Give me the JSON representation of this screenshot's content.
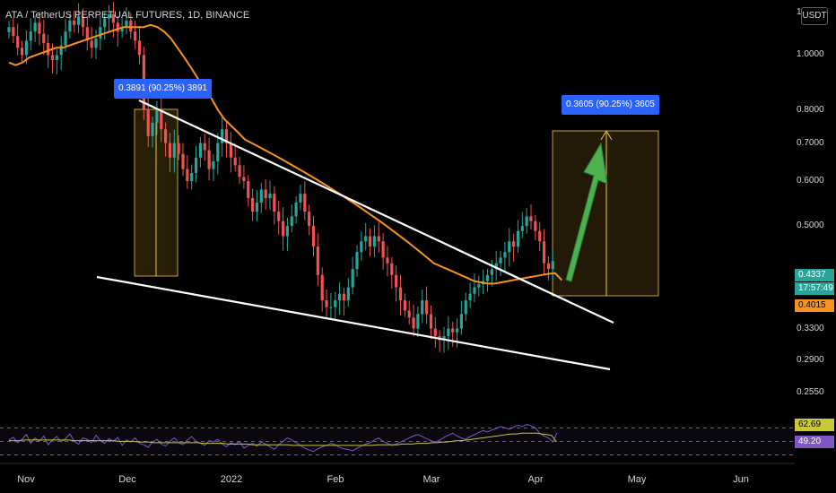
{
  "header": {
    "symbol_title": "ATA / TetherUS PERPETUAL FUTURES, 1D, BINANCE",
    "currency_button": "USDT",
    "top_price_fragment": "1"
  },
  "chart_data": {
    "type": "candlestick",
    "y_scale": "log",
    "ylim": [
      0.235,
      1.25
    ],
    "x_ticks": [
      "Nov",
      "Dec",
      "2022",
      "Feb",
      "Mar",
      "Apr",
      "May",
      "Jun"
    ],
    "y_ticks": [
      "1.0000",
      "0.8000",
      "0.7000",
      "0.6000",
      "0.5000",
      "0.3300",
      "0.2900",
      "0.2550"
    ],
    "last_price": "0.4337",
    "countdown": "17:57:49",
    "ma_price": "0.4015",
    "colors": {
      "up": "#26a69a",
      "down": "#ef5350",
      "ma": "#f7931a",
      "rsi": "#7e57c2",
      "rsi_ma": "#c8c83a",
      "arrow": "#4caf50",
      "callout": "#2962ff"
    },
    "candles_close": [
      1.12,
      1.08,
      1.03,
      1.0,
      1.06,
      1.1,
      1.14,
      1.09,
      1.05,
      1.0,
      0.98,
      1.0,
      1.04,
      1.1,
      1.15,
      1.13,
      1.17,
      1.12,
      1.06,
      1.03,
      1.07,
      1.12,
      1.16,
      1.18,
      1.14,
      1.1,
      1.12,
      1.15,
      1.1,
      1.06,
      1.0,
      0.8,
      0.72,
      0.76,
      0.8,
      0.74,
      0.7,
      0.66,
      0.7,
      0.67,
      0.63,
      0.6,
      0.62,
      0.66,
      0.7,
      0.68,
      0.63,
      0.65,
      0.7,
      0.74,
      0.7,
      0.66,
      0.64,
      0.61,
      0.6,
      0.56,
      0.53,
      0.55,
      0.58,
      0.56,
      0.57,
      0.53,
      0.51,
      0.48,
      0.5,
      0.52,
      0.55,
      0.57,
      0.53,
      0.5,
      0.46,
      0.41,
      0.37,
      0.36,
      0.36,
      0.37,
      0.38,
      0.37,
      0.39,
      0.42,
      0.45,
      0.47,
      0.48,
      0.46,
      0.48,
      0.47,
      0.44,
      0.43,
      0.41,
      0.39,
      0.37,
      0.355,
      0.345,
      0.33,
      0.35,
      0.37,
      0.35,
      0.33,
      0.32,
      0.315,
      0.32,
      0.33,
      0.325,
      0.33,
      0.35,
      0.37,
      0.38,
      0.39,
      0.395,
      0.4,
      0.41,
      0.42,
      0.43,
      0.44,
      0.45,
      0.47,
      0.46,
      0.49,
      0.5,
      0.52,
      0.51,
      0.49,
      0.47,
      0.43,
      0.42,
      0.4337
    ],
    "ma_line": [
      0.97,
      0.96,
      0.97,
      0.99,
      1.0,
      1.01,
      1.02,
      1.03,
      1.03,
      1.04,
      1.05,
      1.06,
      1.07,
      1.08,
      1.09,
      1.1,
      1.11,
      1.12,
      1.12,
      1.12,
      1.12,
      1.13,
      1.12,
      1.1,
      1.07,
      1.03,
      0.99,
      0.95,
      0.91,
      0.87,
      0.84,
      0.8,
      0.77,
      0.75,
      0.73,
      0.71,
      0.7,
      0.69,
      0.68,
      0.67,
      0.66,
      0.65,
      0.64,
      0.63,
      0.62,
      0.61,
      0.6,
      0.59,
      0.58,
      0.57,
      0.56,
      0.55,
      0.54,
      0.53,
      0.52,
      0.51,
      0.5,
      0.49,
      0.48,
      0.47,
      0.46,
      0.45,
      0.44,
      0.43,
      0.425,
      0.42,
      0.415,
      0.41,
      0.405,
      0.4,
      0.398,
      0.396,
      0.396,
      0.398,
      0.4,
      0.402,
      0.404,
      0.406,
      0.408,
      0.41,
      0.412,
      0.413,
      0.4015
    ],
    "ma_line_start_index": 0,
    "ma_line_step": 1.55,
    "annotations": {
      "left_label": "0.3891 (90.25%) 3891",
      "right_label": "0.3605 (90.25%) 3605"
    },
    "rsi": {
      "value": "62.69",
      "ma_value": "49.20",
      "overbought_label": "",
      "values": [
        52,
        56,
        48,
        53,
        60,
        47,
        55,
        50,
        58,
        45,
        52,
        57,
        49,
        54,
        61,
        50,
        46,
        55,
        53,
        48,
        59,
        51,
        47,
        54,
        50,
        56,
        44,
        52,
        49,
        55,
        47,
        45,
        41,
        49,
        53,
        46,
        43,
        50,
        55,
        48,
        45,
        52,
        57,
        50,
        47,
        44,
        51,
        49,
        53,
        46,
        42,
        48,
        45,
        50,
        40,
        44,
        47,
        43,
        49,
        46,
        42,
        38,
        45,
        50,
        55,
        52,
        48,
        44,
        40,
        37,
        35,
        39,
        42,
        44,
        47,
        45,
        41,
        39,
        38,
        36,
        40,
        43,
        46,
        48,
        52,
        55,
        50,
        47,
        44,
        46,
        49,
        52,
        55,
        58,
        60,
        57,
        54,
        51,
        49,
        52,
        56,
        59,
        62,
        58,
        55,
        53,
        57,
        60,
        63,
        66,
        64,
        67,
        69,
        72,
        70,
        68,
        71,
        74,
        72,
        75,
        73,
        70,
        62,
        58,
        55,
        49,
        62.69
      ],
      "ma_values": [
        51,
        51,
        51,
        52,
        52,
        52,
        52,
        52,
        52,
        52,
        52,
        52,
        52,
        51,
        51,
        51,
        51,
        51,
        51,
        51,
        51,
        51,
        50,
        50,
        50,
        50,
        49,
        49,
        49,
        48,
        48,
        48,
        48,
        48,
        48,
        48,
        48,
        48,
        48,
        47,
        47,
        47,
        47,
        47,
        46,
        46,
        46,
        46,
        46,
        45,
        45,
        45,
        45,
        45,
        45,
        45,
        45,
        44,
        44,
        44,
        44,
        44,
        44,
        44,
        44,
        44,
        44,
        44,
        44,
        44,
        44,
        44,
        44,
        44,
        45,
        45,
        45,
        45,
        45,
        46,
        46,
        46,
        47,
        47,
        47,
        48,
        48,
        49,
        49,
        50,
        51,
        51,
        52,
        53,
        54,
        55,
        56,
        57,
        58,
        59,
        60,
        61,
        61,
        62,
        62,
        62,
        62,
        61,
        60,
        59,
        49.2
      ]
    }
  }
}
